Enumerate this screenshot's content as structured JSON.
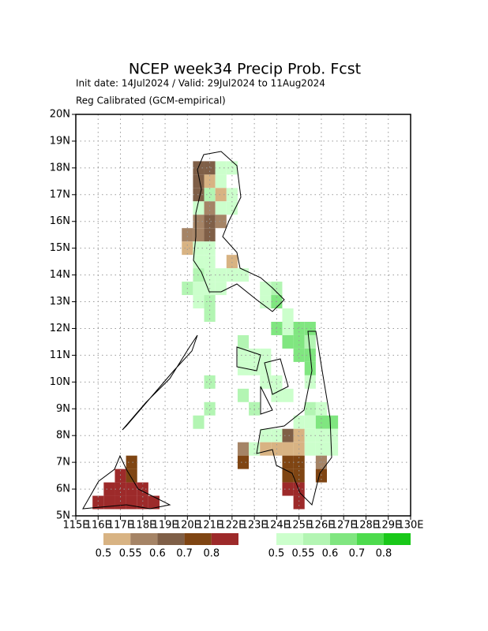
{
  "title": "NCEP week34 Precip Prob. Fcst",
  "init_line": "Init date: 14Jul2024 / Valid: 29Jul2024 to 11Aug2024",
  "method_line": "Reg Calibrated (GCM-empirical)",
  "map": {
    "lonlim": [
      115,
      130
    ],
    "latlim": [
      5,
      20
    ],
    "lonticks": [
      {
        "value": 115,
        "label": "115E"
      },
      {
        "value": 116,
        "label": "116E"
      },
      {
        "value": 117,
        "label": "117E"
      },
      {
        "value": 118,
        "label": "118E"
      },
      {
        "value": 119,
        "label": "119E"
      },
      {
        "value": 120,
        "label": "120E"
      },
      {
        "value": 121,
        "label": "121E"
      },
      {
        "value": 122,
        "label": "122E"
      },
      {
        "value": 123,
        "label": "123E"
      },
      {
        "value": 124,
        "label": "124E"
      },
      {
        "value": 125,
        "label": "125E"
      },
      {
        "value": 126,
        "label": "126E"
      },
      {
        "value": 127,
        "label": "127E"
      },
      {
        "value": 128,
        "label": "128E"
      },
      {
        "value": 129,
        "label": "129E"
      },
      {
        "value": 130,
        "label": "130E"
      }
    ],
    "latticks": [
      {
        "value": 5,
        "label": "5N"
      },
      {
        "value": 6,
        "label": "6N"
      },
      {
        "value": 7,
        "label": "7N"
      },
      {
        "value": 8,
        "label": "8N"
      },
      {
        "value": 9,
        "label": "9N"
      },
      {
        "value": 10,
        "label": "10N"
      },
      {
        "value": 11,
        "label": "11N"
      },
      {
        "value": 12,
        "label": "12N"
      },
      {
        "value": 13,
        "label": "13N"
      },
      {
        "value": 14,
        "label": "14N"
      },
      {
        "value": 15,
        "label": "15N"
      },
      {
        "value": 16,
        "label": "16N"
      },
      {
        "value": 17,
        "label": "17N"
      },
      {
        "value": 18,
        "label": "18N"
      },
      {
        "value": 19,
        "label": "19N"
      },
      {
        "value": 20,
        "label": "20N"
      }
    ],
    "grid": true,
    "cell_size": 0.5
  },
  "legend": {
    "dry": {
      "colors": [
        "#d8b383",
        "#a58466",
        "#7f5f47",
        "#7f4513",
        "#9d2a2a"
      ],
      "labels": [
        "0.5",
        "0.55",
        "0.6",
        "0.7",
        "0.8"
      ]
    },
    "wet": {
      "colors": [
        "#ccffcc",
        "#b3f5b3",
        "#80e680",
        "#4ddb4d",
        "#19c819"
      ],
      "labels": [
        "0.5",
        "0.55",
        "0.6",
        "0.7",
        "0.8"
      ]
    }
  },
  "cells": [
    [
      120.5,
      18,
      "dry",
      2
    ],
    [
      121,
      18,
      "dry",
      2
    ],
    [
      121.5,
      18,
      "wet",
      0
    ],
    [
      122,
      18,
      "wet",
      0
    ],
    [
      120.5,
      17.5,
      "dry",
      2
    ],
    [
      121,
      17.5,
      "dry",
      0
    ],
    [
      121.5,
      17.5,
      "wet",
      0
    ],
    [
      120.5,
      17,
      "dry",
      2
    ],
    [
      121,
      17,
      "wet",
      1
    ],
    [
      121.5,
      17,
      "dry",
      0
    ],
    [
      122,
      17,
      "wet",
      0
    ],
    [
      120.5,
      16.5,
      "wet",
      0
    ],
    [
      121,
      16.5,
      "dry",
      1
    ],
    [
      121.5,
      16.5,
      "wet",
      0
    ],
    [
      122,
      16.5,
      "wet",
      0
    ],
    [
      120.5,
      16,
      "dry",
      1
    ],
    [
      121,
      16,
      "dry",
      2
    ],
    [
      121.5,
      16,
      "dry",
      1
    ],
    [
      120,
      15.5,
      "dry",
      1
    ],
    [
      120.5,
      15.5,
      "dry",
      1
    ],
    [
      121,
      15.5,
      "dry",
      2
    ],
    [
      120,
      15,
      "dry",
      0
    ],
    [
      120.5,
      15,
      "wet",
      0
    ],
    [
      121,
      15,
      "wet",
      0
    ],
    [
      120.5,
      14.5,
      "wet",
      0
    ],
    [
      121,
      14.5,
      "wet",
      0
    ],
    [
      122,
      14.5,
      "dry",
      0
    ],
    [
      120.5,
      14,
      "wet",
      1
    ],
    [
      121,
      14,
      "wet",
      0
    ],
    [
      121.5,
      14,
      "wet",
      0
    ],
    [
      122,
      14,
      "wet",
      0
    ],
    [
      122.5,
      14,
      "wet",
      0
    ],
    [
      120,
      13.5,
      "wet",
      1
    ],
    [
      120.5,
      13.5,
      "wet",
      0
    ],
    [
      121,
      13.5,
      "wet",
      0
    ],
    [
      121.5,
      13.5,
      "wet",
      0
    ],
    [
      123.5,
      13.5,
      "wet",
      0
    ],
    [
      124,
      13.5,
      "wet",
      1
    ],
    [
      120.5,
      13,
      "wet",
      0
    ],
    [
      121,
      13,
      "wet",
      1
    ],
    [
      123.5,
      13,
      "wet",
      0
    ],
    [
      124,
      13,
      "wet",
      2
    ],
    [
      121,
      12.5,
      "wet",
      1
    ],
    [
      124.5,
      12.5,
      "wet",
      0
    ],
    [
      124,
      12,
      "wet",
      2
    ],
    [
      124.5,
      12,
      "wet",
      0
    ],
    [
      125,
      12,
      "wet",
      2
    ],
    [
      125.5,
      12,
      "wet",
      2
    ],
    [
      122.5,
      11.5,
      "wet",
      1
    ],
    [
      124.5,
      11.5,
      "wet",
      2
    ],
    [
      125,
      11.5,
      "wet",
      2
    ],
    [
      125.5,
      11.5,
      "wet",
      1
    ],
    [
      122.5,
      11,
      "wet",
      0
    ],
    [
      123,
      11,
      "wet",
      0
    ],
    [
      123.5,
      11,
      "wet",
      0
    ],
    [
      125,
      11,
      "wet",
      2
    ],
    [
      125.5,
      11,
      "wet",
      2
    ],
    [
      122.5,
      10.5,
      "wet",
      0
    ],
    [
      123,
      10.5,
      "wet",
      0
    ],
    [
      123.5,
      10.5,
      "wet",
      0
    ],
    [
      125.5,
      10.5,
      "wet",
      2
    ],
    [
      121,
      10,
      "wet",
      1
    ],
    [
      123.5,
      10,
      "wet",
      0
    ],
    [
      124,
      10,
      "wet",
      0
    ],
    [
      125.5,
      10,
      "wet",
      0
    ],
    [
      122.5,
      9.5,
      "wet",
      1
    ],
    [
      124,
      9.5,
      "wet",
      0
    ],
    [
      124.5,
      9.5,
      "wet",
      0
    ],
    [
      121,
      9,
      "wet",
      1
    ],
    [
      123,
      9,
      "wet",
      1
    ],
    [
      125.5,
      9,
      "wet",
      1
    ],
    [
      126,
      9,
      "wet",
      0
    ],
    [
      120.5,
      8.5,
      "wet",
      1
    ],
    [
      125,
      8.5,
      "wet",
      0
    ],
    [
      125.5,
      8.5,
      "wet",
      0
    ],
    [
      126,
      8.5,
      "wet",
      2
    ],
    [
      126.5,
      8.5,
      "wet",
      2
    ],
    [
      123.5,
      8,
      "wet",
      0
    ],
    [
      124,
      8,
      "wet",
      0
    ],
    [
      124.5,
      8,
      "dry",
      2
    ],
    [
      125,
      8,
      "dry",
      0
    ],
    [
      125.5,
      8,
      "wet",
      0
    ],
    [
      126,
      8,
      "wet",
      0
    ],
    [
      126.5,
      8,
      "wet",
      0
    ],
    [
      122.5,
      7.5,
      "dry",
      1
    ],
    [
      123,
      7.5,
      "wet",
      0
    ],
    [
      123.5,
      7.5,
      "dry",
      0
    ],
    [
      124,
      7.5,
      "dry",
      0
    ],
    [
      124.5,
      7.5,
      "dry",
      0
    ],
    [
      125,
      7.5,
      "dry",
      0
    ],
    [
      125.5,
      7.5,
      "wet",
      0
    ],
    [
      126,
      7.5,
      "wet",
      0
    ],
    [
      126.5,
      7.5,
      "wet",
      0
    ],
    [
      117.5,
      7,
      "dry",
      3
    ],
    [
      122.5,
      7,
      "dry",
      3
    ],
    [
      124.5,
      7,
      "dry",
      3
    ],
    [
      125,
      7,
      "dry",
      3
    ],
    [
      126,
      7,
      "dry",
      1
    ],
    [
      117,
      6.5,
      "dry",
      4
    ],
    [
      117.5,
      6.5,
      "dry",
      3
    ],
    [
      124.5,
      6.5,
      "dry",
      3
    ],
    [
      125,
      6.5,
      "dry",
      3
    ],
    [
      126,
      6.5,
      "dry",
      3
    ],
    [
      116.5,
      6,
      "dry",
      4
    ],
    [
      117,
      6,
      "dry",
      4
    ],
    [
      117.5,
      6,
      "dry",
      4
    ],
    [
      118,
      6,
      "dry",
      4
    ],
    [
      124.5,
      6,
      "dry",
      4
    ],
    [
      125,
      6,
      "dry",
      4
    ],
    [
      116,
      5.5,
      "dry",
      4
    ],
    [
      116.5,
      5.5,
      "dry",
      4
    ],
    [
      117,
      5.5,
      "dry",
      4
    ],
    [
      117.5,
      5.5,
      "dry",
      4
    ],
    [
      118,
      5.5,
      "dry",
      4
    ],
    [
      118.5,
      5.5,
      "dry",
      4
    ],
    [
      125,
      5.5,
      "dry",
      4
    ]
  ]
}
